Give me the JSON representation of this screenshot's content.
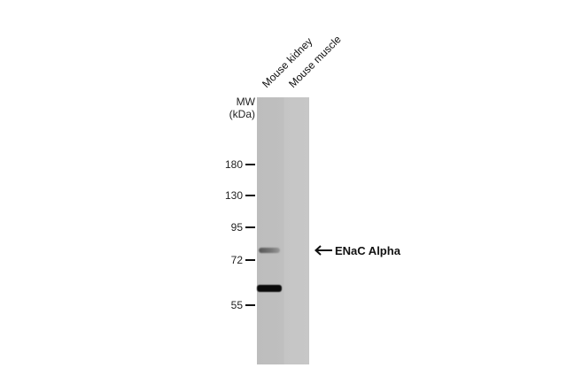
{
  "lanes": [
    "Mouse kidney",
    "Mouse muscle"
  ],
  "mw_header": {
    "line1": "MW",
    "line2": "(kDa)"
  },
  "markers": [
    "180",
    "130",
    "95",
    "72",
    "55"
  ],
  "target": {
    "label": "ENaC Alpha",
    "arrow_icon": "left-arrow-icon"
  },
  "colors": {
    "gel": "#c2c2c2",
    "band": "#0a0a0a"
  }
}
